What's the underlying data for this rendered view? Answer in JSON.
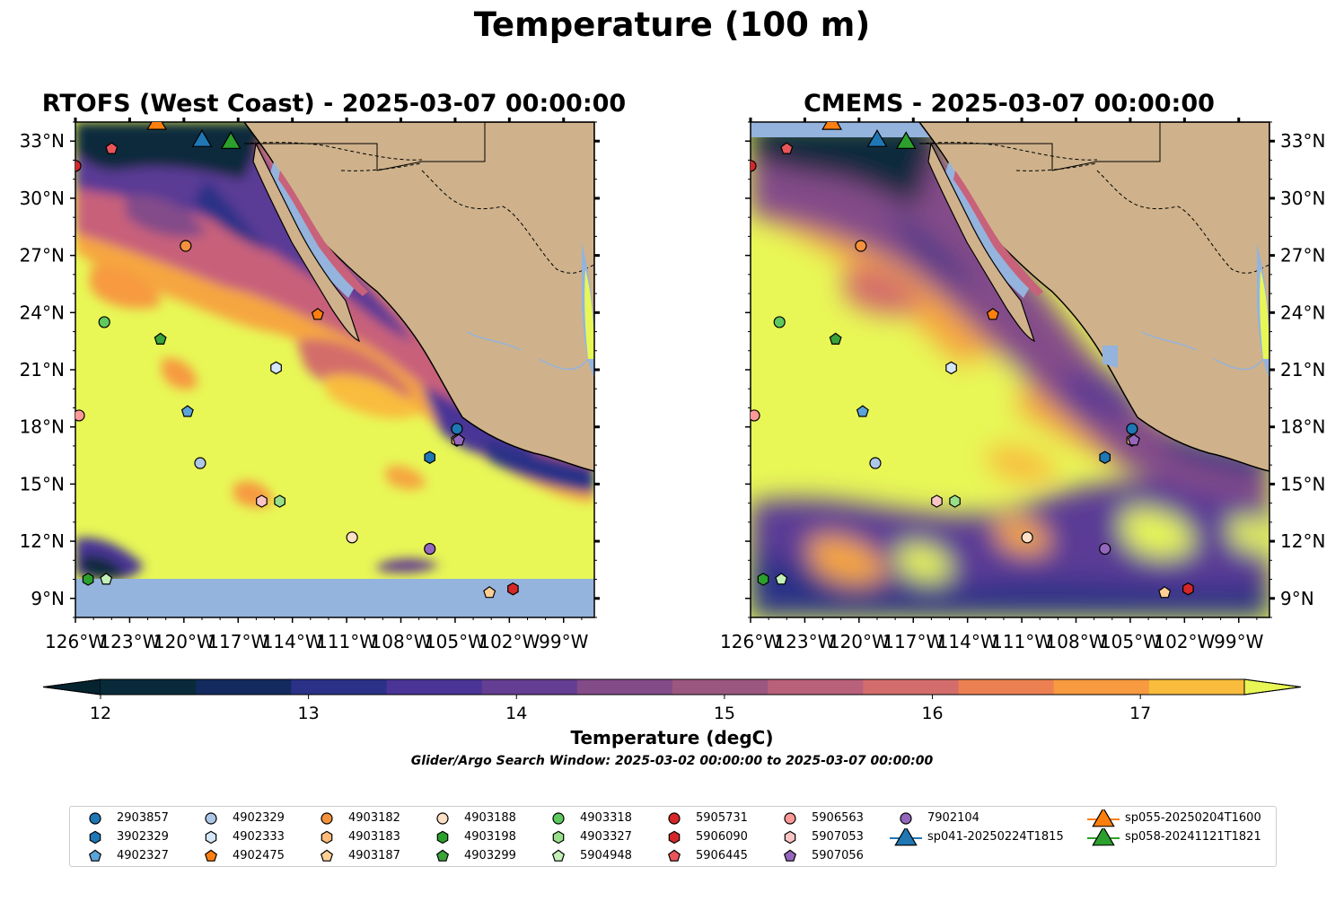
{
  "suptitle": "Temperature (100 m)",
  "panels": [
    {
      "title": "RTOFS (West Coast) - 2025-03-07 00:00:00"
    },
    {
      "title": "CMEMS - 2025-03-07 00:00:00"
    }
  ],
  "lon_ticks": [
    "126°W",
    "123°W",
    "120°W",
    "117°W",
    "114°W",
    "111°W",
    "108°W",
    "105°W",
    "102°W",
    "99°W"
  ],
  "lat_ticks": [
    "33°N",
    "30°N",
    "27°N",
    "24°N",
    "21°N",
    "18°N",
    "15°N",
    "12°N",
    "9°N"
  ],
  "colorbar": {
    "label": "Temperature (degC)",
    "ticks": [
      "12",
      "13",
      "14",
      "15",
      "16",
      "17"
    ],
    "colors": [
      "#092a3a",
      "#132a5e",
      "#2b3187",
      "#4a3496",
      "#643e92",
      "#834c89",
      "#9c5780",
      "#b9607a",
      "#d36d6b",
      "#ec8052",
      "#f79a40",
      "#f9bc3d"
    ],
    "under_color": "#062330",
    "over_color": "#e8f756"
  },
  "search_window": "Glider/Argo Search Window: 2025-03-02 00:00:00 to 2025-03-07 00:00:00",
  "chart_data": {
    "type": "map",
    "variable": "Temperature (100 m)",
    "units": "degC",
    "lon_range": [
      -126,
      -97.3
    ],
    "lat_range": [
      8,
      34
    ],
    "series": [
      {
        "name": "2903857",
        "marker": "circle",
        "color": "#1f77b4",
        "lon": -104.9,
        "lat": 17.9
      },
      {
        "name": "3902329",
        "marker": "hexagon",
        "color": "#1f77b4",
        "lon": -106.4,
        "lat": 16.4
      },
      {
        "name": "4902327",
        "marker": "pentagon",
        "color": "#5ba3d9",
        "lon": -119.8,
        "lat": 18.8
      },
      {
        "name": "4902329",
        "marker": "circle",
        "color": "#aec7e8",
        "lon": -119.1,
        "lat": 16.1
      },
      {
        "name": "4902333",
        "marker": "hexagon",
        "color": "#d4e6f7",
        "lon": -114.9,
        "lat": 21.1
      },
      {
        "name": "4902475",
        "marker": "pentagon",
        "color": "#ff7f0e",
        "lon": -112.6,
        "lat": 23.9
      },
      {
        "name": "4903182",
        "marker": "circle",
        "color": "#f5913d",
        "lon": -119.9,
        "lat": 27.5
      },
      {
        "name": "4903183",
        "marker": "hexagon",
        "color": "#ffbb78",
        "lon": -104.9,
        "lat": 17.3
      },
      {
        "name": "4903187",
        "marker": "pentagon",
        "color": "#ffcf94",
        "lon": -103.1,
        "lat": 9.3
      },
      {
        "name": "4903188",
        "marker": "circle",
        "color": "#fde0c5",
        "lon": -110.7,
        "lat": 12.2
      },
      {
        "name": "4903198",
        "marker": "hexagon",
        "color": "#2ca02c",
        "lon": -125.3,
        "lat": 10.0
      },
      {
        "name": "4903299",
        "marker": "pentagon",
        "color": "#3aa33a",
        "lon": -121.3,
        "lat": 22.6
      },
      {
        "name": "4903318",
        "marker": "circle",
        "color": "#5ec95e",
        "lon": -124.4,
        "lat": 23.5
      },
      {
        "name": "4903327",
        "marker": "hexagon",
        "color": "#98df8a",
        "lon": -114.7,
        "lat": 14.1
      },
      {
        "name": "5904948",
        "marker": "pentagon",
        "color": "#c2f0b8",
        "lon": -124.3,
        "lat": 10.0
      },
      {
        "name": "5905731",
        "marker": "circle",
        "color": "#d62728",
        "lon": -126.0,
        "lat": 31.7
      },
      {
        "name": "5906090",
        "marker": "hexagon",
        "color": "#d62728",
        "lon": -101.8,
        "lat": 9.5
      },
      {
        "name": "5906445",
        "marker": "pentagon",
        "color": "#e8565a",
        "lon": -124.0,
        "lat": 32.6
      },
      {
        "name": "5906563",
        "marker": "circle",
        "color": "#ff9896",
        "lon": -125.8,
        "lat": 18.6
      },
      {
        "name": "5907053",
        "marker": "hexagon",
        "color": "#fbc4c4",
        "lon": -115.7,
        "lat": 14.1
      },
      {
        "name": "5907056",
        "marker": "pentagon",
        "color": "#9467bd",
        "lon": -104.8,
        "lat": 17.3
      },
      {
        "name": "7902104",
        "marker": "circle",
        "color": "#9467bd",
        "lon": -106.4,
        "lat": 11.6
      },
      {
        "name": "sp041-20250224T1815",
        "marker": "triangle",
        "color": "#1f77b4",
        "lon": -119.0,
        "lat": 33.0
      },
      {
        "name": "sp055-20250204T1600",
        "marker": "triangle",
        "color": "#ff7f0e",
        "lon": -121.5,
        "lat": 33.9
      },
      {
        "name": "sp058-20241121T1821",
        "marker": "triangle",
        "color": "#2ca02c",
        "lon": -117.4,
        "lat": 32.9
      }
    ]
  }
}
